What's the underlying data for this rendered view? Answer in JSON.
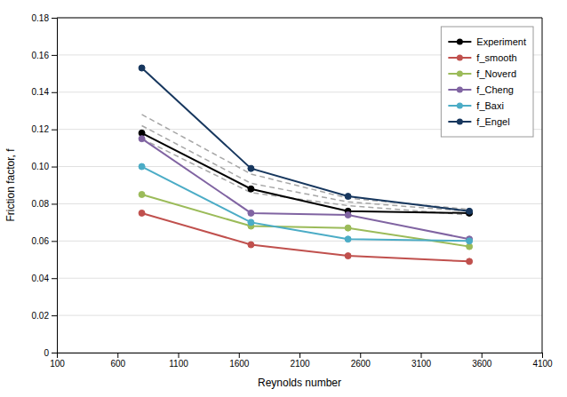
{
  "chart_data": {
    "type": "line",
    "x": [
      800,
      1700,
      2500,
      3500
    ],
    "xlabel": "Reynolds number",
    "ylabel": "Friction factor, f",
    "xlim": [
      100,
      4100
    ],
    "ylim": [
      0,
      0.18
    ],
    "xticks": [
      100,
      600,
      1100,
      1600,
      2100,
      2600,
      3100,
      3600,
      4100
    ],
    "yticks": [
      0,
      0.02,
      0.04,
      0.06,
      0.08,
      {
        "value": 0.1,
        "label": "0.10"
      },
      0.12,
      0.14,
      0.16,
      0.18
    ],
    "grid": "y",
    "legend": "upper right",
    "series": [
      {
        "color": "#a6a6a6",
        "line_style": "dashed",
        "marker": "none",
        "values": [
          0.128,
          0.096,
          0.083,
          0.077
        ]
      },
      {
        "color": "#a6a6a6",
        "line_style": "dashed",
        "marker": "none",
        "values": [
          0.122,
          0.091,
          0.081,
          0.076
        ]
      },
      {
        "color": "#a6a6a6",
        "line_style": "dashed",
        "marker": "none",
        "values": [
          0.115,
          0.086,
          0.079,
          0.074
        ]
      },
      {
        "name": "Experiment",
        "color": "#000000",
        "line_style": "solid",
        "marker": "circle",
        "values": [
          0.118,
          0.088,
          0.076,
          0.075
        ]
      },
      {
        "name": "f_smooth",
        "color": "#c0504d",
        "line_style": "solid",
        "marker": "circle",
        "values": [
          0.075,
          0.058,
          0.052,
          0.049
        ]
      },
      {
        "name": "f_Noverd",
        "color": "#9bbb59",
        "line_style": "solid",
        "marker": "circle",
        "values": [
          0.085,
          0.068,
          0.067,
          0.057
        ]
      },
      {
        "name": "f_Cheng",
        "color": "#8064a2",
        "line_style": "solid",
        "marker": "circle",
        "values": [
          0.115,
          0.075,
          0.074,
          0.061
        ]
      },
      {
        "name": "f_Baxi",
        "color": "#4bacc6",
        "line_style": "solid",
        "marker": "circle",
        "values": [
          0.1,
          0.07,
          0.061,
          0.06
        ]
      },
      {
        "name": "f_Engel",
        "color": "#17375e",
        "line_style": "solid",
        "marker": "circle",
        "values": [
          0.153,
          0.099,
          0.084,
          0.076
        ]
      }
    ]
  }
}
